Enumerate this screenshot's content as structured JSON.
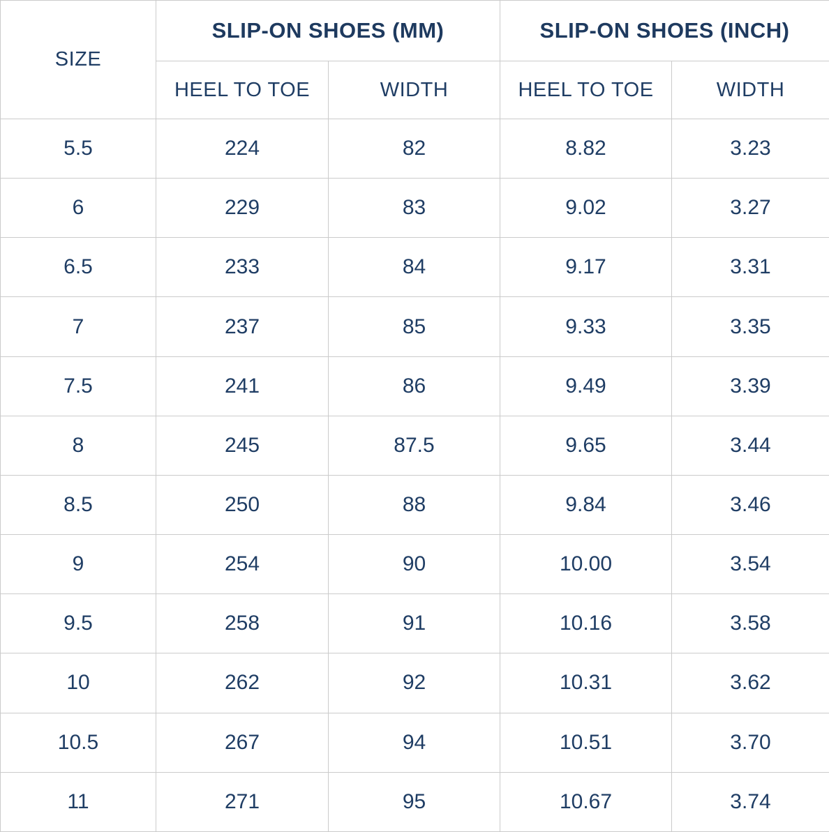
{
  "table": {
    "size_header": "SIZE",
    "groups": [
      {
        "label": "SLIP-ON SHOES (MM)",
        "columns": [
          "HEEL TO TOE",
          "WIDTH"
        ]
      },
      {
        "label": "SLIP-ON SHOES (INCH)",
        "columns": [
          "HEEL TO TOE",
          "WIDTH"
        ]
      }
    ],
    "row_keys": [
      "size",
      "mm_heel_to_toe",
      "mm_width",
      "inch_heel_to_toe",
      "inch_width"
    ],
    "cell_names": [
      "size-cell",
      "mm-heel-to-toe-cell",
      "mm-width-cell",
      "inch-heel-to-toe-cell",
      "inch-width-cell"
    ],
    "rows": [
      {
        "size": "5.5",
        "mm_heel_to_toe": "224",
        "mm_width": "82",
        "inch_heel_to_toe": "8.82",
        "inch_width": "3.23"
      },
      {
        "size": "6",
        "mm_heel_to_toe": "229",
        "mm_width": "83",
        "inch_heel_to_toe": "9.02",
        "inch_width": "3.27"
      },
      {
        "size": "6.5",
        "mm_heel_to_toe": "233",
        "mm_width": "84",
        "inch_heel_to_toe": "9.17",
        "inch_width": "3.31"
      },
      {
        "size": "7",
        "mm_heel_to_toe": "237",
        "mm_width": "85",
        "inch_heel_to_toe": "9.33",
        "inch_width": "3.35"
      },
      {
        "size": "7.5",
        "mm_heel_to_toe": "241",
        "mm_width": "86",
        "inch_heel_to_toe": "9.49",
        "inch_width": "3.39"
      },
      {
        "size": "8",
        "mm_heel_to_toe": "245",
        "mm_width": "87.5",
        "inch_heel_to_toe": "9.65",
        "inch_width": "3.44"
      },
      {
        "size": "8.5",
        "mm_heel_to_toe": "250",
        "mm_width": "88",
        "inch_heel_to_toe": "9.84",
        "inch_width": "3.46"
      },
      {
        "size": "9",
        "mm_heel_to_toe": "254",
        "mm_width": "90",
        "inch_heel_to_toe": "10.00",
        "inch_width": "3.54"
      },
      {
        "size": "9.5",
        "mm_heel_to_toe": "258",
        "mm_width": "91",
        "inch_heel_to_toe": "10.16",
        "inch_width": "3.58"
      },
      {
        "size": "10",
        "mm_heel_to_toe": "262",
        "mm_width": "92",
        "inch_heel_to_toe": "10.31",
        "inch_width": "3.62"
      },
      {
        "size": "10.5",
        "mm_heel_to_toe": "267",
        "mm_width": "94",
        "inch_heel_to_toe": "10.51",
        "inch_width": "3.70"
      },
      {
        "size": "11",
        "mm_heel_to_toe": "271",
        "mm_width": "95",
        "inch_heel_to_toe": "10.67",
        "inch_width": "3.74"
      }
    ]
  },
  "colors": {
    "header_text": "#1e3a5f",
    "body_text": "#1f3d64",
    "border": "#cbcbcb",
    "background": "#ffffff"
  }
}
